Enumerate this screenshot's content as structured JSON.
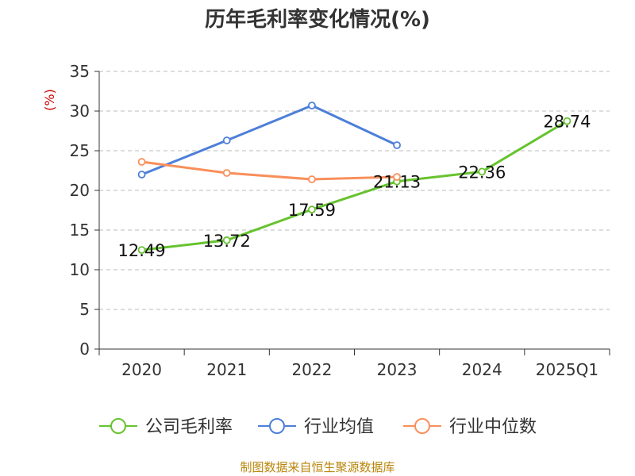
{
  "source_text": "制图数据来自恒生聚源数据库",
  "chart_data": {
    "type": "line",
    "title": "历年毛利率变化情况(%)",
    "ylabel": "(%)",
    "xlabel": "",
    "categories": [
      "2020",
      "2021",
      "2022",
      "2023",
      "2024",
      "2025Q1"
    ],
    "ylim": [
      0,
      35
    ],
    "yticks": [
      0,
      5,
      10,
      15,
      20,
      25,
      30,
      35
    ],
    "grid": true,
    "legend_position": "bottom",
    "series": [
      {
        "name": "公司毛利率",
        "color": "#66c32e",
        "show_labels": true,
        "values": [
          12.49,
          13.72,
          17.59,
          21.13,
          22.36,
          28.74
        ],
        "labels": [
          "12.49",
          "13.72",
          "17.59",
          "21.13",
          "22.36",
          "28.74"
        ]
      },
      {
        "name": "行业均值",
        "color": "#4d7fd9",
        "show_labels": false,
        "values": [
          22.0,
          26.3,
          30.7,
          25.7,
          null,
          null
        ]
      },
      {
        "name": "行业中位数",
        "color": "#f98f5b",
        "show_labels": false,
        "values": [
          23.6,
          22.2,
          21.4,
          21.7,
          null,
          null
        ]
      }
    ]
  }
}
